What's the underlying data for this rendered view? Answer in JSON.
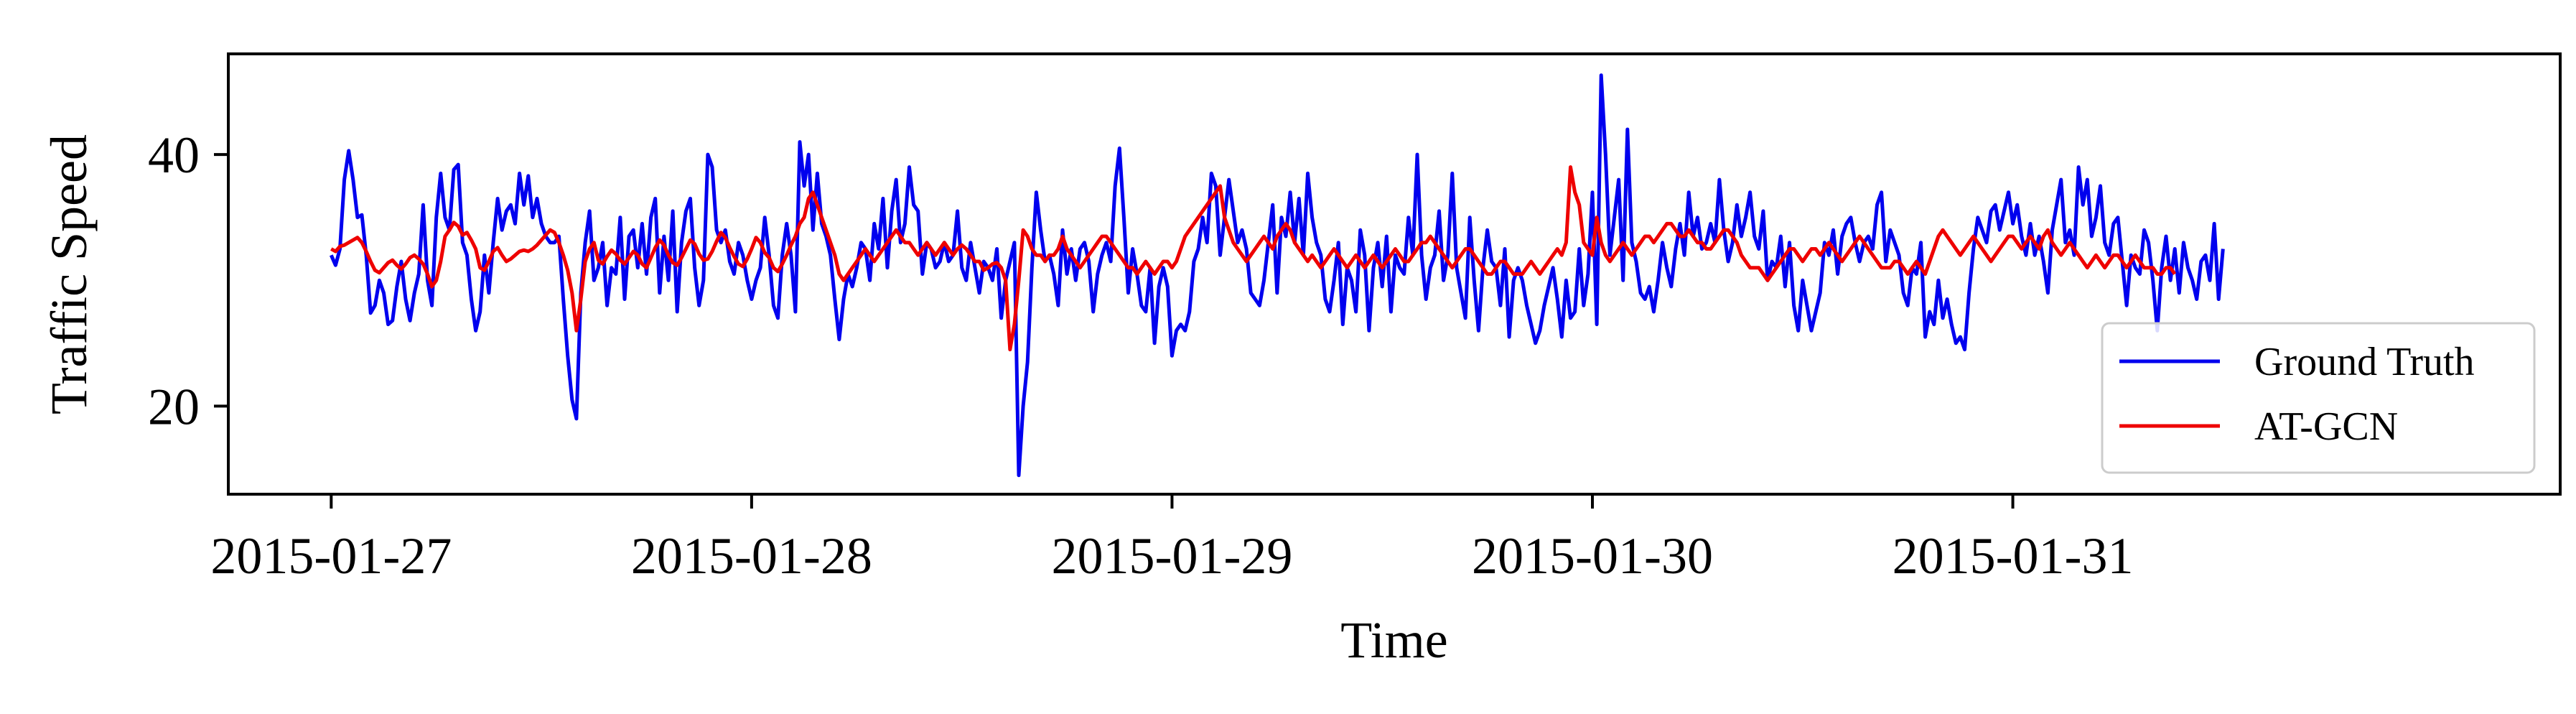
{
  "chart_data": {
    "type": "line",
    "xlabel": "Time",
    "ylabel": "Traffic Speed",
    "x_ticks": [
      {
        "label": "2015-01-27",
        "value": 0
      },
      {
        "label": "2015-01-28",
        "value": 96
      },
      {
        "label": "2015-01-29",
        "value": 192
      },
      {
        "label": "2015-01-30",
        "value": 288
      },
      {
        "label": "2015-01-31",
        "value": 384
      }
    ],
    "xlim": [
      -23.5,
      509
    ],
    "y_ticks": [
      20,
      40
    ],
    "ylim": [
      13,
      48
    ],
    "grid": false,
    "legend_position": "lower-right",
    "series": [
      {
        "name": "Ground Truth",
        "color": "#0000ee",
        "values": [
          32.0,
          31.2,
          32.5,
          38.0,
          40.3,
          38.0,
          35.0,
          35.2,
          32.0,
          27.4,
          28.0,
          30.0,
          29.0,
          26.5,
          26.8,
          29.5,
          31.5,
          28.5,
          26.8,
          29.0,
          30.5,
          36.0,
          30.0,
          28.0,
          35.0,
          38.5,
          35.0,
          34.0,
          38.8,
          39.2,
          33.0,
          32.0,
          28.5,
          26.0,
          27.5,
          32.0,
          29.0,
          33.0,
          36.5,
          34.0,
          35.5,
          36.0,
          34.5,
          38.5,
          36.0,
          38.3,
          35.0,
          36.5,
          34.5,
          33.5,
          33.0,
          33.0,
          33.5,
          28.5,
          24.0,
          20.5,
          19.0,
          29.0,
          33.0,
          35.5,
          30.0,
          31.0,
          33.0,
          28.0,
          31.0,
          30.5,
          35.0,
          28.5,
          33.5,
          34.0,
          31.0,
          34.5,
          30.5,
          35.0,
          36.5,
          29.0,
          33.5,
          30.0,
          35.5,
          27.5,
          33.0,
          35.5,
          36.5,
          31.0,
          28.0,
          30.0,
          40.0,
          39.0,
          34.0,
          33.0,
          34.0,
          31.5,
          30.5,
          33.0,
          32.0,
          30.0,
          28.5,
          30.0,
          31.0,
          35.0,
          32.0,
          28.0,
          27.0,
          32.0,
          34.5,
          32.0,
          27.5,
          41.0,
          37.5,
          40.0,
          34.0,
          38.5,
          34.5,
          33.5,
          32.0,
          28.5,
          25.3,
          28.5,
          30.5,
          29.5,
          31.0,
          33.0,
          32.5,
          30.0,
          34.5,
          32.5,
          36.5,
          31.0,
          35.5,
          38.0,
          33.0,
          34.5,
          39.0,
          36.0,
          35.5,
          30.5,
          33.0,
          32.5,
          31.0,
          31.5,
          33.0,
          31.5,
          32.0,
          35.5,
          31.0,
          30.0,
          33.0,
          31.0,
          29.0,
          31.5,
          31.0,
          30.0,
          32.5,
          27.0,
          30.0,
          31.5,
          33.0,
          14.5,
          20.0,
          23.5,
          31.0,
          37.0,
          34.0,
          31.5,
          32.0,
          30.5,
          28.0,
          34.0,
          30.5,
          32.5,
          30.0,
          32.5,
          33.0,
          31.5,
          27.5,
          30.5,
          32.0,
          33.0,
          31.5,
          37.5,
          40.5,
          35.0,
          29.0,
          32.5,
          30.5,
          28.0,
          27.5,
          31.0,
          25.0,
          29.5,
          31.0,
          29.5,
          24.0,
          26.0,
          26.5,
          26.0,
          27.5,
          31.5,
          32.5,
          35.0,
          33.0,
          38.5,
          37.5,
          32.0,
          35.0,
          38.0,
          35.5,
          33.0,
          34.0,
          32.5,
          29.0,
          28.5,
          28.0,
          30.0,
          33.0,
          36.0,
          29.0,
          35.0,
          33.5,
          37.0,
          33.0,
          36.5,
          32.0,
          38.5,
          35.0,
          33.0,
          32.0,
          28.5,
          27.5,
          30.0,
          33.0,
          26.5,
          31.0,
          30.0,
          27.5,
          34.0,
          32.0,
          26.0,
          31.0,
          33.0,
          29.5,
          33.5,
          27.5,
          32.0,
          31.0,
          30.5,
          35.0,
          32.0,
          40.0,
          32.0,
          28.5,
          31.0,
          32.0,
          35.5,
          30.0,
          32.0,
          38.5,
          31.0,
          29.0,
          27.0,
          35.0,
          30.0,
          26.0,
          31.0,
          34.0,
          31.5,
          31.0,
          28.0,
          32.5,
          25.5,
          30.0,
          31.0,
          30.0,
          28.0,
          26.5,
          25.0,
          26.0,
          28.0,
          29.5,
          31.0,
          28.5,
          25.5,
          30.0,
          27.0,
          27.5,
          32.5,
          28.0,
          30.5,
          37.0,
          26.5,
          46.3,
          40.0,
          32.0,
          35.0,
          38.0,
          30.0,
          42.0,
          33.0,
          31.5,
          29.0,
          28.5,
          29.5,
          27.5,
          30.0,
          33.0,
          31.0,
          29.5,
          32.5,
          34.5,
          32.0,
          37.0,
          33.5,
          35.0,
          32.5,
          33.0,
          34.5,
          33.0,
          38.0,
          34.0,
          31.5,
          33.0,
          36.0,
          33.5,
          35.0,
          37.0,
          33.5,
          32.5,
          35.5,
          30.0,
          31.5,
          31.0,
          33.5,
          29.5,
          33.0,
          28.0,
          26.0,
          30.0,
          28.0,
          26.0,
          27.5,
          29.0,
          33.0,
          32.0,
          34.0,
          30.5,
          33.5,
          34.5,
          35.0,
          33.0,
          31.5,
          33.0,
          33.5,
          32.5,
          36.0,
          37.0,
          31.5,
          34.0,
          33.0,
          32.0,
          29.0,
          28.0,
          31.0,
          30.5,
          33.0,
          25.5,
          27.5,
          26.5,
          30.0,
          27.0,
          28.5,
          26.5,
          25.0,
          25.5,
          24.5,
          29.0,
          32.5,
          35.0,
          34.0,
          33.0,
          35.5,
          36.0,
          34.0,
          35.5,
          37.0,
          34.5,
          36.0,
          33.5,
          32.0,
          34.5,
          32.0,
          33.5,
          31.5,
          29.0,
          34.0,
          36.0,
          38.0,
          33.0,
          34.0,
          32.0,
          39.0,
          36.0,
          38.0,
          33.5,
          35.0,
          37.5,
          33.0,
          32.0,
          34.5,
          35.0,
          31.5,
          28.0,
          32.0,
          31.0,
          30.5,
          34.0,
          33.0,
          30.0,
          26.0,
          31.0,
          33.5,
          30.0,
          32.5,
          29.0,
          33.0,
          31.0,
          30.0,
          28.5,
          31.5,
          32.0,
          30.0,
          34.5,
          28.5,
          32.5
        ]
      },
      {
        "name": "AT-GCN",
        "color": "#ee0000",
        "values": [
          32.5,
          32.3,
          32.7,
          32.8,
          33.0,
          33.2,
          33.4,
          33.0,
          32.3,
          31.5,
          30.8,
          30.6,
          31.0,
          31.4,
          31.6,
          31.2,
          30.9,
          31.3,
          31.8,
          32.0,
          31.7,
          31.3,
          30.5,
          29.5,
          30.0,
          31.5,
          33.5,
          34.0,
          34.6,
          34.3,
          33.6,
          33.8,
          33.2,
          32.5,
          31.0,
          30.8,
          31.5,
          32.3,
          32.6,
          32.0,
          31.5,
          31.7,
          32.0,
          32.3,
          32.4,
          32.3,
          32.5,
          32.8,
          33.2,
          33.6,
          34.0,
          33.8,
          33.0,
          32.0,
          30.8,
          29.0,
          26.0,
          28.5,
          31.5,
          32.5,
          33.0,
          31.6,
          31.3,
          31.9,
          32.4,
          32.1,
          31.6,
          31.3,
          31.8,
          32.3,
          32.0,
          31.3,
          31.0,
          31.8,
          32.6,
          33.2,
          32.8,
          32.0,
          31.4,
          31.2,
          31.8,
          32.5,
          33.2,
          32.9,
          32.1,
          31.6,
          31.7,
          32.3,
          33.1,
          33.8,
          33.4,
          32.6,
          31.9,
          31.3,
          31.1,
          31.7,
          32.5,
          33.4,
          33.0,
          32.2,
          31.8,
          31.0,
          30.7,
          31.3,
          32.0,
          32.8,
          33.5,
          34.5,
          35.0,
          36.5,
          37.0,
          36.0,
          35.0,
          34.0,
          33.0,
          32.0,
          30.5,
          30.0,
          30.5,
          31.0,
          31.5,
          32.0,
          32.5,
          32.0,
          31.5,
          32.0,
          32.5,
          33.0,
          33.5,
          34.0,
          33.5,
          33.0,
          33.0,
          32.5,
          32.0,
          32.5,
          33.0,
          32.5,
          32.0,
          32.5,
          33.0,
          32.5,
          32.0,
          32.5,
          32.8,
          32.5,
          32.0,
          31.5,
          31.5,
          30.8,
          31.0,
          31.3,
          31.4,
          31.0,
          30.0,
          24.5,
          26.5,
          30.0,
          34.0,
          33.5,
          32.5,
          32.0,
          32.0,
          31.5,
          32.0,
          32.0,
          32.5,
          33.5,
          32.5,
          32.0,
          31.5,
          31.0,
          31.5,
          32.0,
          32.5,
          33.0,
          33.5,
          33.5,
          33.0,
          32.5,
          32.0,
          31.5,
          31.0,
          31.0,
          30.5,
          31.0,
          31.5,
          31.0,
          30.5,
          31.0,
          31.5,
          31.5,
          31.0,
          31.5,
          32.5,
          33.5,
          34.0,
          34.5,
          35.0,
          35.5,
          36.0,
          36.5,
          37.0,
          37.5,
          35.0,
          34.0,
          33.0,
          32.5,
          32.0,
          31.5,
          32.0,
          32.5,
          33.0,
          33.5,
          33.0,
          32.5,
          33.5,
          34.0,
          34.5,
          34.0,
          33.0,
          32.5,
          32.0,
          31.5,
          32.0,
          31.5,
          31.0,
          31.5,
          32.0,
          32.5,
          32.0,
          31.5,
          31.0,
          31.5,
          32.0,
          31.5,
          31.0,
          31.5,
          32.0,
          31.5,
          31.0,
          31.5,
          32.0,
          32.5,
          32.0,
          31.5,
          31.5,
          32.0,
          32.5,
          33.0,
          33.0,
          33.5,
          33.0,
          32.5,
          32.0,
          31.5,
          31.0,
          31.5,
          32.0,
          32.5,
          32.5,
          32.0,
          31.5,
          31.0,
          30.5,
          30.5,
          31.0,
          31.5,
          31.5,
          31.0,
          30.5,
          30.5,
          30.5,
          31.0,
          31.5,
          31.0,
          30.5,
          31.0,
          31.5,
          32.0,
          32.5,
          32.0,
          33.0,
          39.0,
          37.0,
          36.0,
          33.0,
          32.5,
          32.0,
          35.0,
          33.0,
          32.0,
          31.5,
          32.0,
          32.5,
          33.0,
          32.5,
          32.0,
          32.5,
          33.0,
          33.5,
          33.5,
          33.0,
          33.5,
          34.0,
          34.5,
          34.5,
          34.0,
          33.5,
          33.5,
          34.0,
          33.5,
          33.0,
          33.0,
          32.5,
          32.5,
          33.0,
          33.5,
          34.0,
          34.0,
          33.5,
          33.0,
          32.0,
          31.5,
          31.0,
          31.0,
          31.0,
          30.5,
          30.0,
          30.5,
          31.0,
          31.5,
          32.0,
          32.5,
          32.5,
          32.0,
          31.5,
          32.0,
          32.5,
          32.5,
          32.0,
          32.5,
          33.0,
          32.5,
          32.0,
          31.5,
          32.0,
          32.5,
          33.0,
          33.5,
          33.0,
          32.5,
          32.0,
          31.5,
          31.0,
          31.0,
          31.0,
          31.5,
          31.5,
          31.0,
          30.5,
          31.0,
          31.5,
          31.0,
          30.5,
          31.5,
          32.5,
          33.5,
          34.0,
          33.5,
          33.0,
          32.5,
          32.0,
          32.5,
          33.0,
          33.5,
          33.0,
          32.5,
          32.0,
          31.5,
          32.0,
          32.5,
          33.0,
          33.5,
          33.5,
          33.0,
          32.5,
          33.0,
          33.5,
          33.0,
          32.5,
          33.5,
          34.0,
          33.0,
          32.5,
          32.0,
          32.5,
          33.0,
          32.5,
          32.0,
          31.5,
          31.0,
          31.5,
          32.0,
          31.5,
          31.0,
          31.5,
          32.0,
          32.0,
          31.5,
          31.0,
          31.5,
          32.0,
          31.5,
          31.0,
          31.0,
          31.0,
          30.5,
          30.5,
          31.0,
          31.0,
          30.5
        ]
      }
    ]
  }
}
